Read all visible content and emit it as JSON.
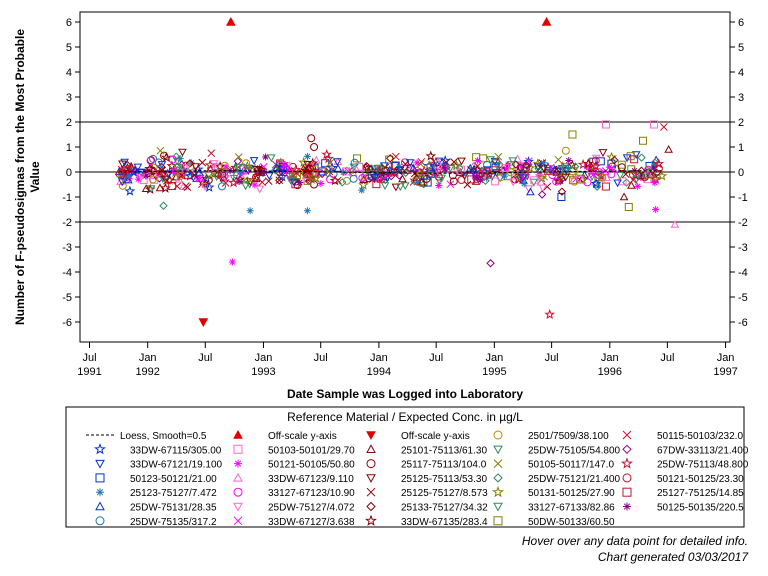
{
  "chart_data": {
    "type": "scatter",
    "title": "",
    "xlabel": "Date Sample was Logged into Laboratory",
    "ylabel_line1": "Number of F-pseudosigmas from the Most Probable",
    "ylabel_line2": "Value",
    "xlim": [
      "1991-06-01",
      "1997-01-15"
    ],
    "ylim": [
      -6.8,
      6.4
    ],
    "y_ticks": [
      -6,
      -5,
      -4,
      -3,
      -2,
      -1,
      0,
      1,
      2,
      3,
      4,
      5,
      6
    ],
    "x_ticks": [
      {
        "date": "1991-07-01",
        "line1": "Jul",
        "line2": "1991"
      },
      {
        "date": "1992-01-01",
        "line1": "Jan",
        "line2": "1992"
      },
      {
        "date": "1992-07-01",
        "line1": "Jul",
        "line2": ""
      },
      {
        "date": "1993-01-01",
        "line1": "Jan",
        "line2": "1993"
      },
      {
        "date": "1993-07-01",
        "line1": "Jul",
        "line2": ""
      },
      {
        "date": "1994-01-01",
        "line1": "Jan",
        "line2": "1994"
      },
      {
        "date": "1994-07-01",
        "line1": "Jul",
        "line2": ""
      },
      {
        "date": "1995-01-01",
        "line1": "Jan",
        "line2": "1995"
      },
      {
        "date": "1995-07-01",
        "line1": "Jul",
        "line2": ""
      },
      {
        "date": "1996-01-01",
        "line1": "Jan",
        "line2": "1996"
      },
      {
        "date": "1996-07-01",
        "line1": "Jul",
        "line2": ""
      },
      {
        "date": "1997-01-01",
        "line1": "Jan",
        "line2": "1997"
      }
    ],
    "reference_lines": [
      -2,
      0,
      2
    ],
    "data_range": [
      "1991-10-01",
      "1996-06-15"
    ],
    "offscale": [
      {
        "x": "1992-09-20",
        "y": 6,
        "dir": "up",
        "label": "Off-scale y-axis"
      },
      {
        "x": "1995-06-15",
        "y": 6,
        "dir": "up",
        "label": "Off-scale y-axis"
      },
      {
        "x": "1992-06-25",
        "y": -6,
        "dir": "down",
        "label": "Off-scale y-axis"
      }
    ],
    "notable_points": [
      {
        "x": "1992-09-25",
        "y": -3.6,
        "series": 8
      },
      {
        "x": "1994-12-20",
        "y": -3.65,
        "series": 6
      },
      {
        "x": "1995-06-25",
        "y": -5.7,
        "series": 11
      },
      {
        "x": "1993-06-01",
        "y": 1.35,
        "series": 9
      },
      {
        "x": "1993-06-10",
        "y": 1.0,
        "series": 9
      },
      {
        "x": "1993-07-20",
        "y": 0.7,
        "series": 11
      },
      {
        "x": "1992-07-20",
        "y": 0.75,
        "series": 1
      },
      {
        "x": "1992-09-01",
        "y": 0.25,
        "series": 0
      },
      {
        "x": "1992-11-20",
        "y": -1.55,
        "series": 17
      },
      {
        "x": "1993-05-20",
        "y": -1.55,
        "series": 17
      },
      {
        "x": "1992-04-20",
        "y": 0.8,
        "series": 14
      },
      {
        "x": "1992-02-20",
        "y": -1.35,
        "series": 15
      },
      {
        "x": "1992-01-10",
        "y": 0.45,
        "series": 18
      },
      {
        "x": "1991-10-20",
        "y": 0.4,
        "series": 7
      },
      {
        "x": "1992-03-20",
        "y": 0.5,
        "series": 18
      },
      {
        "x": "1992-02-10",
        "y": 0.85,
        "series": 10
      },
      {
        "x": "1995-09-05",
        "y": 1.5,
        "series": 30
      },
      {
        "x": "1995-08-15",
        "y": 0.85,
        "series": 31
      },
      {
        "x": "1995-12-20",
        "y": 1.9,
        "series": 3
      },
      {
        "x": "1996-05-20",
        "y": 1.9,
        "series": 3
      },
      {
        "x": "1996-06-20",
        "y": 1.8,
        "series": 32
      },
      {
        "x": "1996-04-15",
        "y": 1.25,
        "series": 30
      },
      {
        "x": "1996-02-15",
        "y": -1.0,
        "series": 4
      },
      {
        "x": "1996-03-01",
        "y": -1.4,
        "series": 30
      },
      {
        "x": "1996-05-25",
        "y": -1.5,
        "series": 8
      },
      {
        "x": "1996-07-25",
        "y": -2.1,
        "series": 13
      },
      {
        "x": "1996-07-05",
        "y": 0.9,
        "series": 35
      },
      {
        "x": "1995-08-01",
        "y": -1.0,
        "series": 12
      },
      {
        "x": "1995-04-25",
        "y": -0.8,
        "series": 22
      },
      {
        "x": "1995-06-01",
        "y": -0.9,
        "series": 6
      }
    ],
    "legend": {
      "title": "Reference Material / Expected Conc. in µg/L",
      "entries": [
        {
          "label": "Loess, Smooth=0.5",
          "marker": "dash",
          "color": "#000000"
        },
        {
          "label": "Off-scale y-axis",
          "marker": "triangle-up-filled",
          "color": "#e00000"
        },
        {
          "label": "Off-scale y-axis",
          "marker": "triangle-down-filled",
          "color": "#e00000"
        },
        {
          "label": "2501/7509/38.100",
          "marker": "circle",
          "color": "#b8860b"
        },
        {
          "label": "50115-50103/232.0",
          "marker": "x",
          "color": "#c8102e"
        },
        {
          "label": "33DW-67115/305.00",
          "marker": "star",
          "color": "#0033cc"
        },
        {
          "label": "50103-50101/29.70",
          "marker": "square",
          "color": "#ff66cc"
        },
        {
          "label": "25101-75113/61.30",
          "marker": "triangle-up",
          "color": "#8b0000"
        },
        {
          "label": "25DW-75105/54.800",
          "marker": "triangle-down",
          "color": "#2e8b57"
        },
        {
          "label": "67DW-33113/21.400",
          "marker": "diamond",
          "color": "#8b008b"
        },
        {
          "label": "33DW-67121/19.100",
          "marker": "triangle-down",
          "color": "#0033cc"
        },
        {
          "label": "50121-50105/50.80",
          "marker": "asterisk",
          "color": "#ff00ff"
        },
        {
          "label": "25117-75113/104.0",
          "marker": "circle",
          "color": "#8b0000"
        },
        {
          "label": "50105-50117/147.0",
          "marker": "x",
          "color": "#808000"
        },
        {
          "label": "25DW-75113/48.800",
          "marker": "star",
          "color": "#c8102e"
        },
        {
          "label": "50123-50121/21.00",
          "marker": "square",
          "color": "#0033cc"
        },
        {
          "label": "33DW-67123/9.110",
          "marker": "triangle-up",
          "color": "#ff66cc"
        },
        {
          "label": "25125-75113/53.30",
          "marker": "triangle-down",
          "color": "#8b0000"
        },
        {
          "label": "25DW-75121/21.400",
          "marker": "diamond",
          "color": "#2e8b57"
        },
        {
          "label": "50121-50125/23.30",
          "marker": "circle",
          "color": "#c8102e"
        },
        {
          "label": "25123-75127/7.472",
          "marker": "asterisk",
          "color": "#1f77b4"
        },
        {
          "label": "33127-67123/10.90",
          "marker": "circle",
          "color": "#ff00ff"
        },
        {
          "label": "25125-75127/8.573",
          "marker": "x",
          "color": "#8b0000"
        },
        {
          "label": "50131-50125/27.90",
          "marker": "star",
          "color": "#808000"
        },
        {
          "label": "25127-75125/14.85",
          "marker": "square",
          "color": "#c8102e"
        },
        {
          "label": "25DW-75131/28.35",
          "marker": "triangle-up",
          "color": "#0033cc"
        },
        {
          "label": "25DW-75127/4.072",
          "marker": "triangle-down",
          "color": "#ff66cc"
        },
        {
          "label": "25133-75127/34.32",
          "marker": "diamond",
          "color": "#8b0000"
        },
        {
          "label": "33127-67133/82.86",
          "marker": "triangle-down",
          "color": "#2e8b57"
        },
        {
          "label": "50125-50135/220.5",
          "marker": "asterisk",
          "color": "#8b008b"
        },
        {
          "label": "25DW-75135/317.2",
          "marker": "circle",
          "color": "#1f77b4"
        },
        {
          "label": "33DW-67127/3.638",
          "marker": "x",
          "color": "#ff00ff"
        },
        {
          "label": "33DW-67135/283.4",
          "marker": "star",
          "color": "#8b0000"
        },
        {
          "label": "50DW-50133/60.50",
          "marker": "square",
          "color": "#808000"
        }
      ]
    }
  },
  "footnotes": {
    "hover": "Hover over any data point for detailed info.",
    "generated": "Chart generated 03/03/2017"
  }
}
